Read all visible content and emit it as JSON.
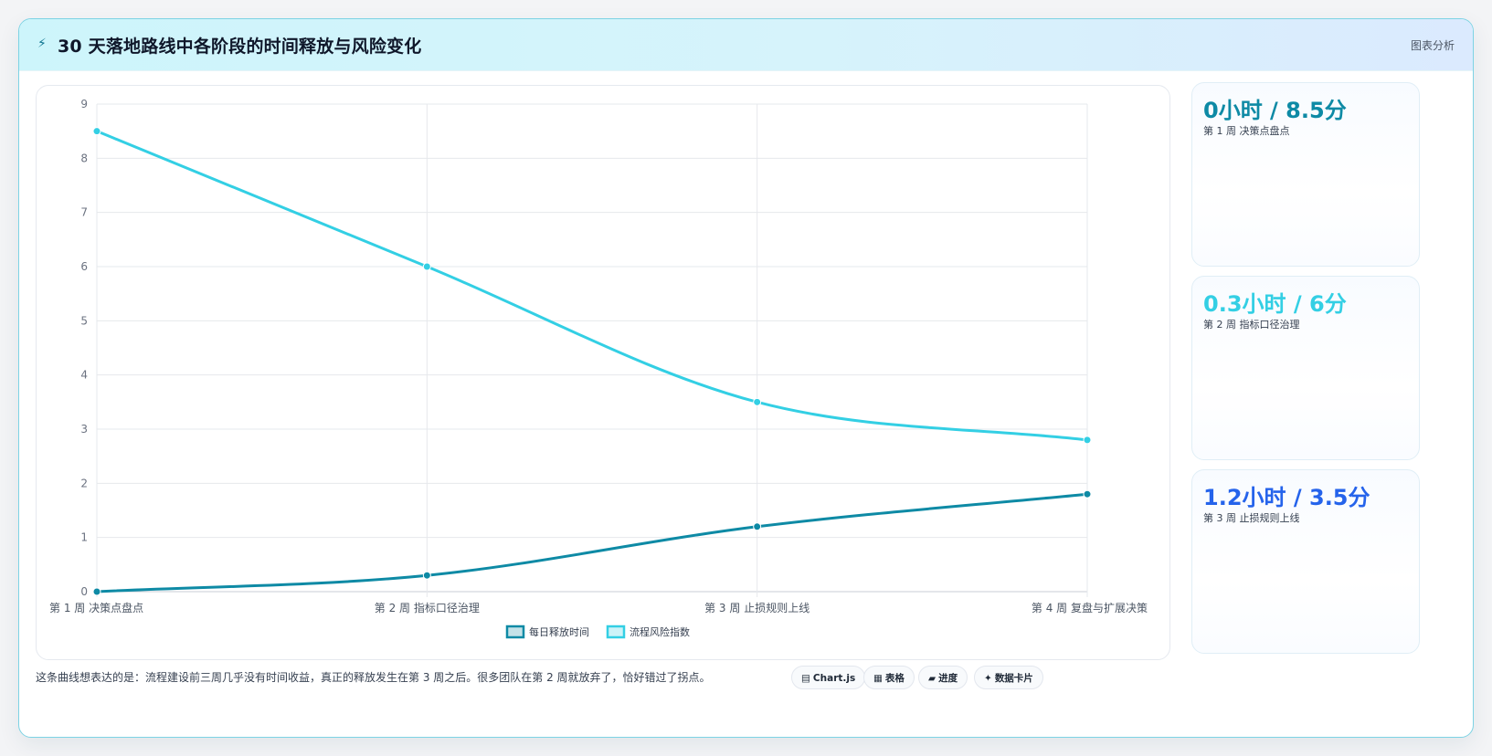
{
  "header": {
    "icon": "bolt-icon",
    "title": "30 天落地路线中各阶段的时间释放与风险变化",
    "tag": "图表分析"
  },
  "chart_data": {
    "type": "line",
    "categories": [
      "第 1 周 决策点盘点",
      "第 2 周 指标口径治理",
      "第 3 周 止损规则上线",
      "第 4 周 复盘与扩展决策"
    ],
    "series": [
      {
        "name": "每日释放时间",
        "values": [
          0,
          0.3,
          1.2,
          1.8
        ],
        "color": "#0e8aa5"
      },
      {
        "name": "流程风险指数",
        "values": [
          8.5,
          6,
          3.5,
          2.8
        ],
        "color": "#33cfe4"
      }
    ],
    "ylim": [
      0,
      9
    ],
    "yticks": [
      "0",
      "1",
      "2",
      "3",
      "4",
      "5",
      "6",
      "7",
      "8",
      "9"
    ],
    "grid": true,
    "legend": "bottom"
  },
  "stats": [
    {
      "value": "0小时 / 8.5分",
      "label": "第 1 周 决策点盘点",
      "color": "#0e8aa5"
    },
    {
      "value": "0.3小时 / 6分",
      "label": "第 2 周 指标口径治理",
      "color": "#33cfe4"
    },
    {
      "value": "1.2小时 / 3.5分",
      "label": "第 3 周 止损规则上线",
      "color": "#2563eb"
    }
  ],
  "footer": {
    "note": "这条曲线想表达的是：流程建设前三周几乎没有时间收益，真正的释放发生在第 3 周之后。很多团队在第 2 周就放弃了，恰好错过了拐点。",
    "pills": [
      {
        "icon": "chart-icon",
        "glyph": "▤",
        "label": "Chart.js"
      },
      {
        "icon": "table-icon",
        "glyph": "▦",
        "label": "表格"
      },
      {
        "icon": "progress-icon",
        "glyph": "▰",
        "label": "进度"
      },
      {
        "icon": "sparkle-icon",
        "glyph": "✦",
        "label": "数据卡片"
      }
    ]
  }
}
